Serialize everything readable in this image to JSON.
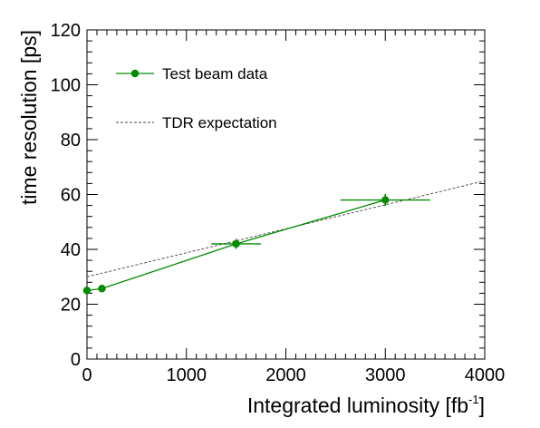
{
  "chart_data": {
    "type": "line",
    "xlabel": "Integrated luminosity [fb",
    "xlabel_sup": "-1",
    "xlabel_tail": "]",
    "ylabel": "time resolution [ps]",
    "xlim": [
      0,
      4000
    ],
    "ylim": [
      0,
      120
    ],
    "x_ticks": [
      0,
      1000,
      2000,
      3000,
      4000
    ],
    "y_ticks": [
      0,
      20,
      40,
      60,
      80,
      100,
      120
    ],
    "x_tick_labels": [
      "0",
      "1000",
      "2000",
      "3000",
      "4000"
    ],
    "y_tick_labels": [
      "0",
      "20",
      "40",
      "60",
      "80",
      "100",
      "120"
    ],
    "grid": false,
    "legend_position": "top-left",
    "series": [
      {
        "name": "Test beam data",
        "style": "line-markers",
        "color": "#008c00",
        "points": [
          {
            "x": 0,
            "y": 25.0,
            "xerr": 0,
            "yerr": 0.8
          },
          {
            "x": 150,
            "y": 25.7,
            "xerr": 0,
            "yerr": 0.8
          },
          {
            "x": 1500,
            "y": 42.0,
            "xerr": 250,
            "yerr": 1.8
          },
          {
            "x": 3000,
            "y": 58.0,
            "xerr": 450,
            "yerr": 2.2
          }
        ]
      },
      {
        "name": "TDR expectation",
        "style": "dashed",
        "color": "#444444",
        "points": [
          {
            "x": 0,
            "y": 30.0
          },
          {
            "x": 4000,
            "y": 65.0
          }
        ]
      }
    ]
  }
}
